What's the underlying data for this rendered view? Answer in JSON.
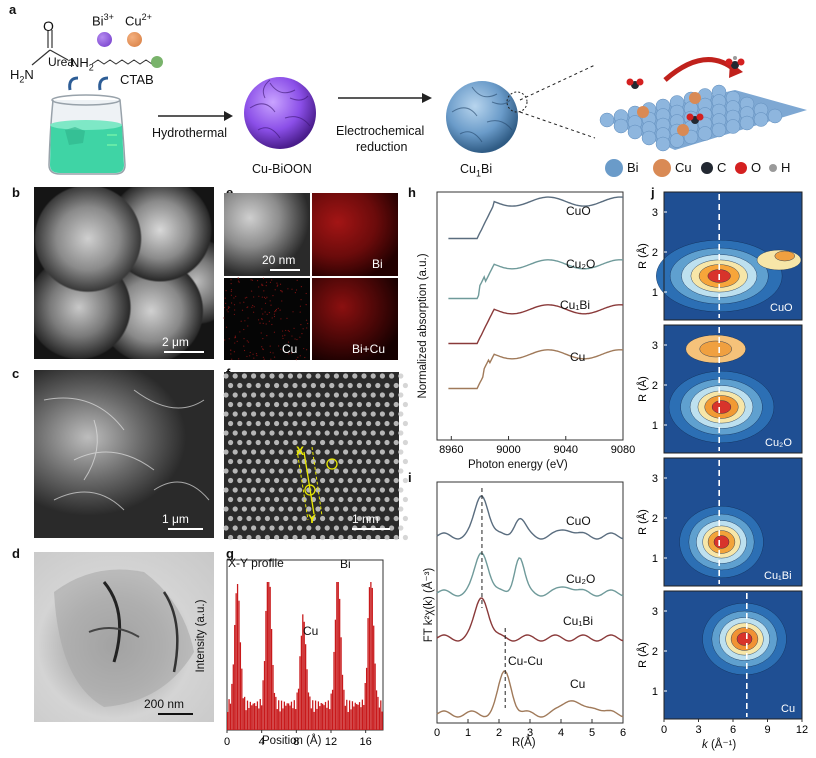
{
  "panel_a": {
    "label": "a",
    "reagents": {
      "urea": "Urea",
      "nh2": "NH",
      "nh2_sub": "2",
      "h2n": "H",
      "h2n_sub": "2",
      "h2n_n": "N",
      "o": "O",
      "bi": "Bi",
      "bi_sup": "3+",
      "cu": "Cu",
      "cu_sup": "2+",
      "ctab": "CTAB"
    },
    "arrow1": "Hydrothermal",
    "arrow2_line1": "Electrochemical",
    "arrow2_line2": "reduction",
    "product1": "Cu-BiOON",
    "product2_main": "Cu",
    "product2_sub": "1",
    "product2_end": "Bi",
    "legend": [
      {
        "symbol": "Bi",
        "color": "#6a9bc9"
      },
      {
        "symbol": "Cu",
        "color": "#d98a55"
      },
      {
        "symbol": "C",
        "color": "#222831"
      },
      {
        "symbol": "O",
        "color": "#d42020"
      },
      {
        "symbol": "H",
        "color": "#9a9a9a"
      }
    ]
  },
  "panel_b": {
    "label": "b",
    "scale": "2 μm"
  },
  "panel_c": {
    "label": "c",
    "scale": "1 μm"
  },
  "panel_d": {
    "label": "d",
    "scale": "200 nm"
  },
  "panel_e": {
    "label": "e",
    "scale": "20 nm",
    "maps": [
      "Bi",
      "Cu",
      "Bi+Cu"
    ]
  },
  "panel_f": {
    "label": "f",
    "scale": "1 nm",
    "x_mark": "X",
    "y_mark": "Y"
  },
  "panel_g": {
    "label": "g",
    "title": "X-Y profile",
    "ylabel": "Intensity (a.u.)",
    "xlabel": "Position (Å)",
    "peak_labels": [
      "Cu",
      "Bi"
    ],
    "xticks": [
      "0",
      "4",
      "8",
      "12",
      "16"
    ]
  },
  "panel_h": {
    "label": "h",
    "ylabel": "Normalized absorption (a.u.)",
    "xlabel": "Photon energy (eV)",
    "xticks": [
      "8960",
      "9000",
      "9040",
      "9080"
    ],
    "series": [
      "CuO",
      "Cu₂O",
      "Cu₁Bi",
      "Cu"
    ]
  },
  "panel_i": {
    "label": "i",
    "ylabel": "FT k²χ(k) (Å⁻³)",
    "xlabel": "R(Å)",
    "xticks": [
      "0",
      "1",
      "2",
      "3",
      "4",
      "5",
      "6"
    ],
    "series": [
      "CuO",
      "Cu₂O",
      "Cu₁Bi",
      "Cu"
    ],
    "annotation": "Cu-Cu"
  },
  "panel_j": {
    "label": "j",
    "ylabel": "R (Å)",
    "xlabel_k": "k",
    "xlabel_unit": " (Å⁻¹)",
    "xticks": [
      "0",
      "3",
      "6",
      "9",
      "12"
    ],
    "yticks_top": [
      "1",
      "2",
      "3"
    ],
    "yticks_bottom": [
      "1",
      "2",
      "3"
    ],
    "maps": [
      "CuO",
      "Cu₂O",
      "Cu₁Bi",
      "Cu"
    ]
  },
  "chart_data": [
    {
      "type": "bar",
      "title": "X-Y profile",
      "xlabel": "Position (Å)",
      "ylabel": "Intensity (a.u.)",
      "xlim": [
        0,
        18
      ],
      "peaks": [
        {
          "x": 1.2,
          "y": 0.82
        },
        {
          "x": 4.8,
          "y": 0.95
        },
        {
          "x": 8.8,
          "y": 0.6,
          "label": "Cu"
        },
        {
          "x": 12.8,
          "y": 0.88,
          "label": "Bi"
        },
        {
          "x": 16.6,
          "y": 0.92
        }
      ]
    },
    {
      "type": "line",
      "xlabel": "Photon energy (eV)",
      "ylabel": "Normalized absorption (a.u.)",
      "xlim": [
        8950,
        9080
      ],
      "series": [
        {
          "name": "CuO"
        },
        {
          "name": "Cu₂O"
        },
        {
          "name": "Cu₁Bi"
        },
        {
          "name": "Cu"
        }
      ]
    },
    {
      "type": "line",
      "xlabel": "R(Å)",
      "ylabel": "FT k²χ(k) (Å⁻³)",
      "xlim": [
        0,
        6
      ],
      "series": [
        {
          "name": "CuO",
          "peak_R": 1.45
        },
        {
          "name": "Cu₂O",
          "peak_R": 1.45
        },
        {
          "name": "Cu₁Bi",
          "peak_R": 1.45
        },
        {
          "name": "Cu",
          "peak_R": 2.2
        }
      ]
    }
  ]
}
